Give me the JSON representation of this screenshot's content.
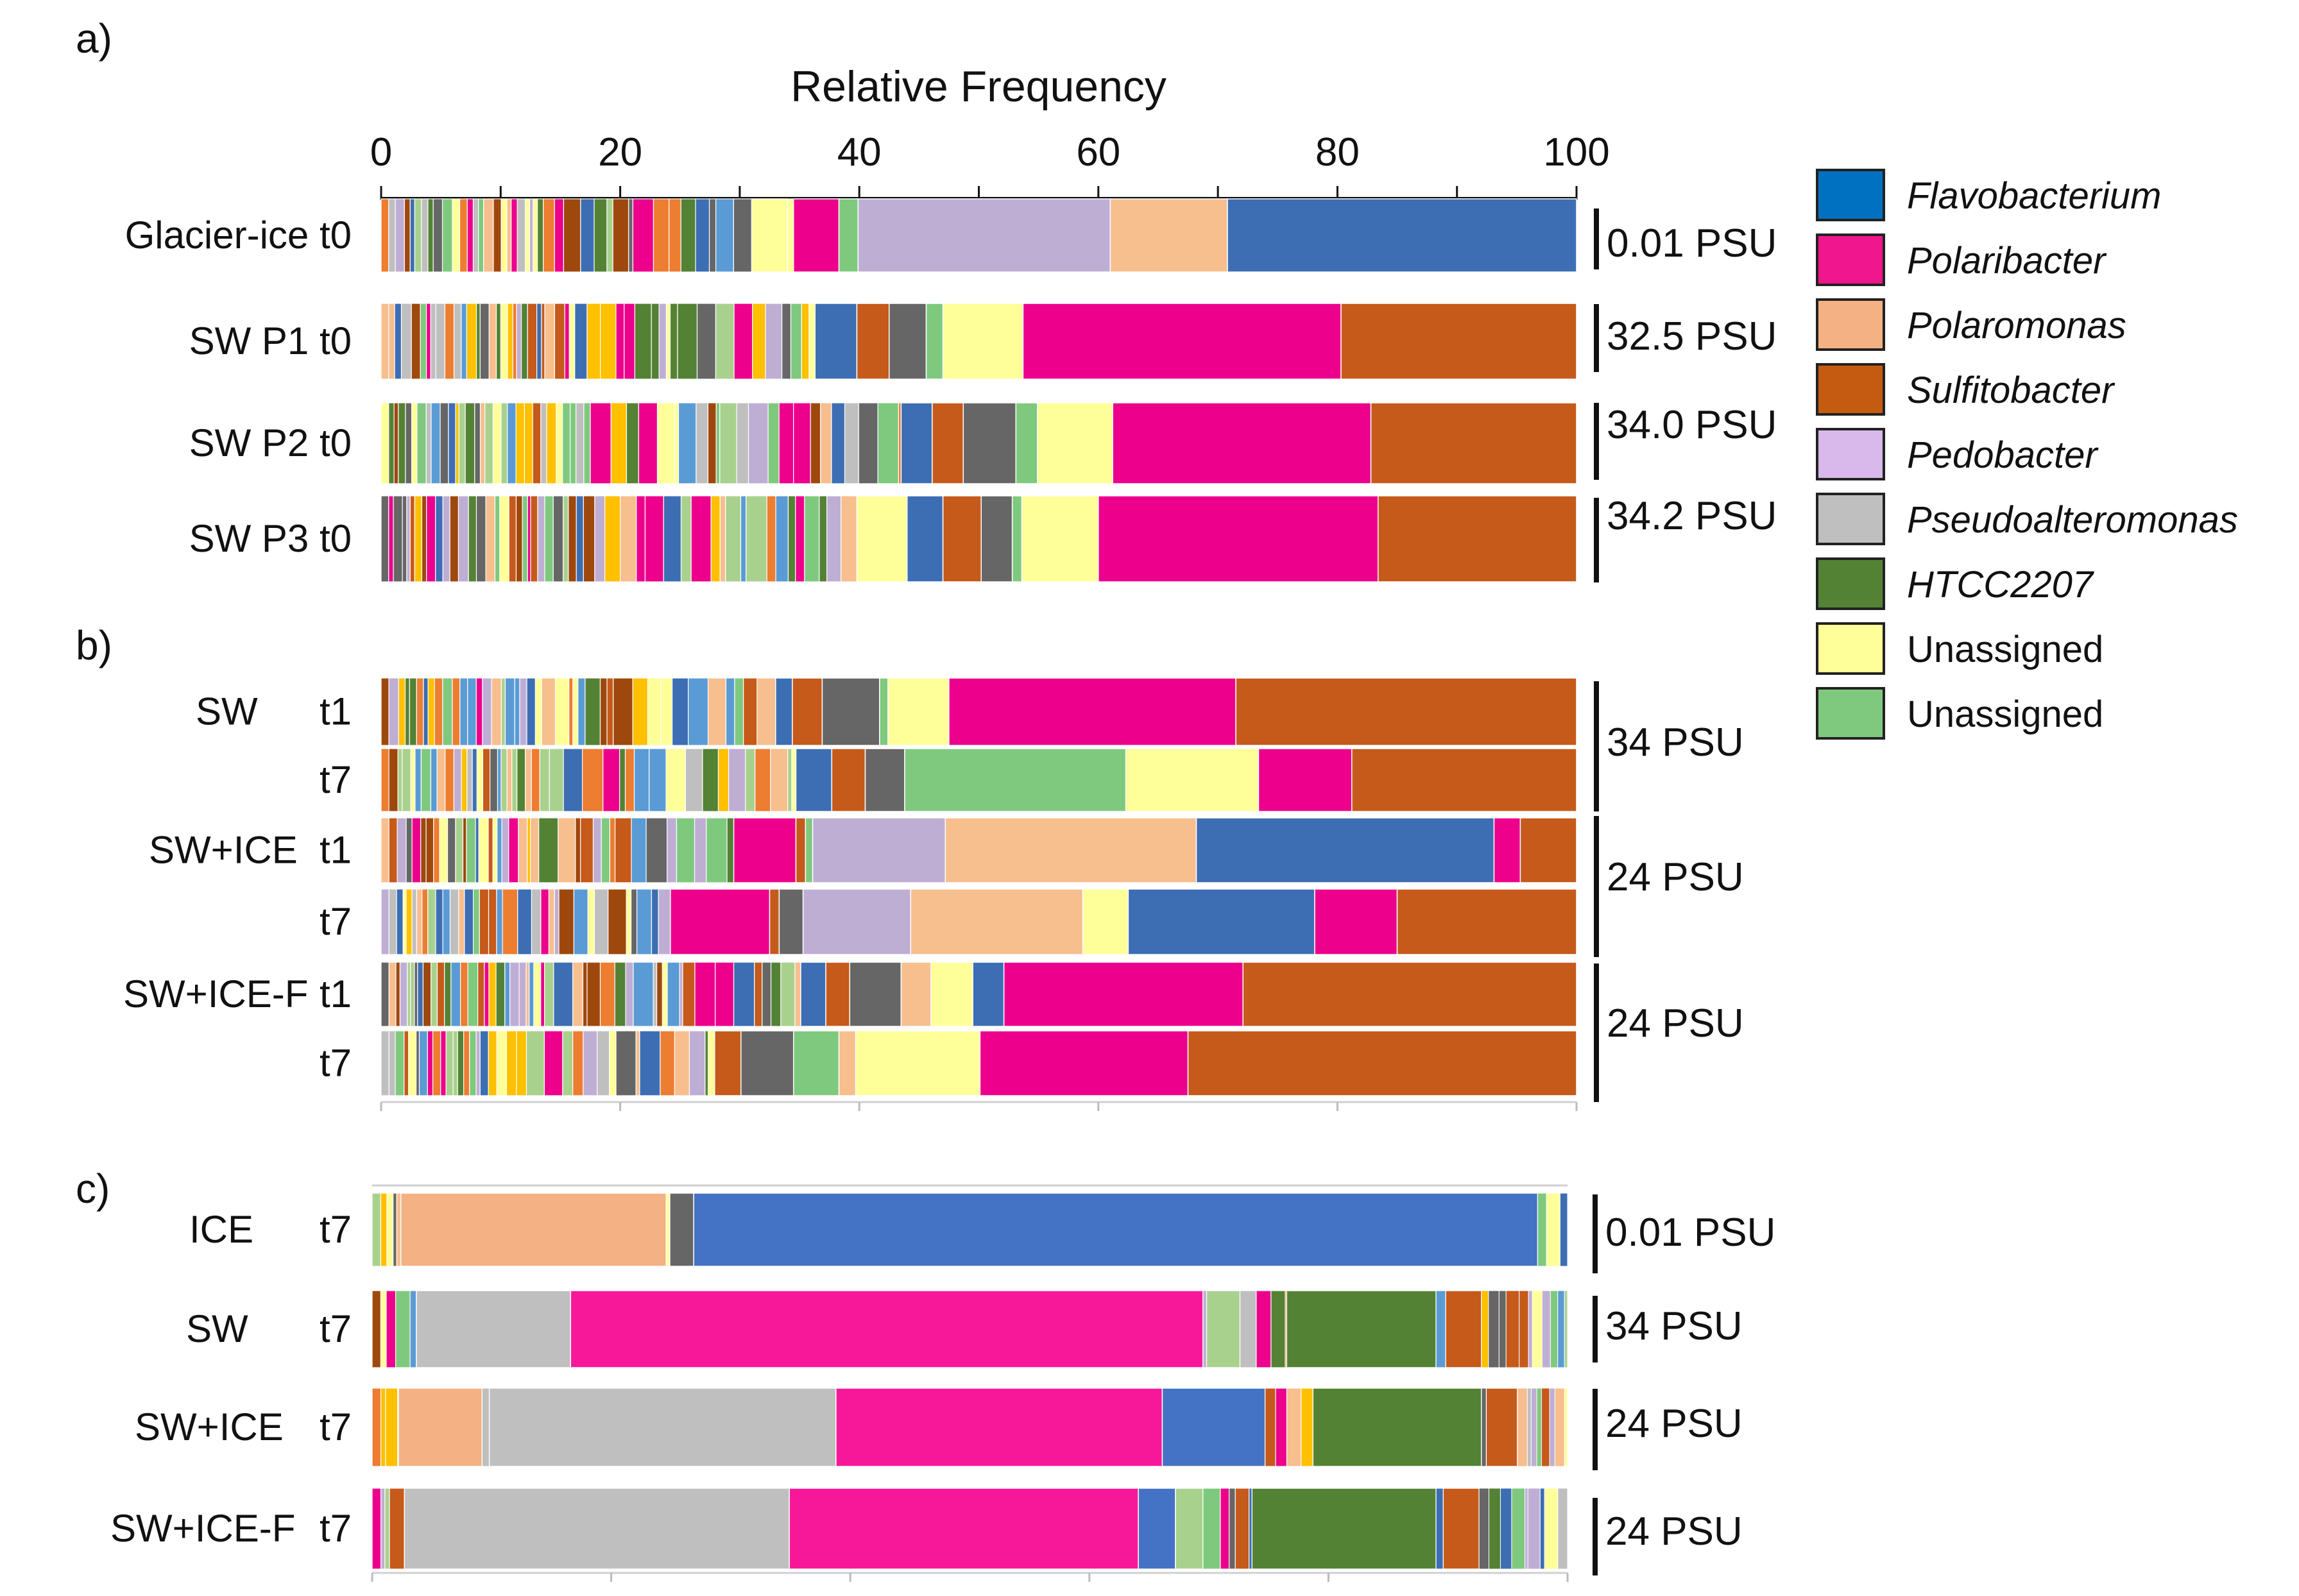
{
  "chart_data": {
    "type": "bar",
    "orientation": "horizontal",
    "stacked": true,
    "title": "Relative Frequency",
    "xlim": [
      0,
      100
    ],
    "x_ticks": [
      "0",
      "20",
      "40",
      "60",
      "80",
      "100"
    ],
    "panels": [
      {
        "label": "a)",
        "bars": [
          {
            "name": "Glacier-ice t0",
            "salinity": "0.01 PSU",
            "major": [
              {
                "taxon": "Unassigned",
                "start": 31.0,
                "value": 3.0
              },
              {
                "taxon": "Polaribacter",
                "start": 34.5,
                "value": 3.8
              },
              {
                "taxon": "Unassigned (green)",
                "start": 38.3,
                "value": 1.6
              },
              {
                "taxon": "Pedobacter",
                "start": 39.9,
                "value": 21.1
              },
              {
                "taxon": "Polaromonas",
                "start": 61.0,
                "value": 9.8
              },
              {
                "taxon": "Flavobacterium",
                "start": 70.8,
                "value": 29.2
              }
            ]
          },
          {
            "name": "SW P1 t0",
            "salinity": "32.5 PSU",
            "major": [
              {
                "taxon": "Flavobacterium",
                "start": 36.3,
                "value": 3.5
              },
              {
                "taxon": "Sulfitobacter",
                "start": 39.8,
                "value": 2.7
              },
              {
                "taxon": "other",
                "start": 42.5,
                "value": 3.1
              },
              {
                "taxon": "Unassigned (green)",
                "start": 45.6,
                "value": 1.4
              },
              {
                "taxon": "Unassigned",
                "start": 47.0,
                "value": 6.7
              },
              {
                "taxon": "Polaribacter",
                "start": 53.7,
                "value": 26.6
              },
              {
                "taxon": "Sulfitobacter",
                "start": 80.3,
                "value": 19.7
              }
            ]
          },
          {
            "name": "SW P2 t0",
            "salinity": "34.0 PSU",
            "major": [
              {
                "taxon": "Flavobacterium",
                "start": 43.5,
                "value": 2.6
              },
              {
                "taxon": "Sulfitobacter",
                "start": 46.1,
                "value": 2.6
              },
              {
                "taxon": "other",
                "start": 48.7,
                "value": 4.4
              },
              {
                "taxon": "Unassigned (green)",
                "start": 53.1,
                "value": 1.8
              },
              {
                "taxon": "Unassigned",
                "start": 54.9,
                "value": 6.3
              },
              {
                "taxon": "Polaribacter",
                "start": 61.2,
                "value": 21.6
              },
              {
                "taxon": "Sulfitobacter",
                "start": 82.8,
                "value": 17.2
              }
            ]
          },
          {
            "name": "SW P3 t0",
            "salinity": "34.2 PSU",
            "major": [
              {
                "taxon": "Unassigned",
                "start": 39.8,
                "value": 4.2
              },
              {
                "taxon": "Flavobacterium",
                "start": 44.0,
                "value": 3.0
              },
              {
                "taxon": "Sulfitobacter",
                "start": 47.0,
                "value": 3.2
              },
              {
                "taxon": "other",
                "start": 50.2,
                "value": 2.6
              },
              {
                "taxon": "Unassigned (green)",
                "start": 52.8,
                "value": 0.8
              },
              {
                "taxon": "Unassigned",
                "start": 53.6,
                "value": 6.4
              },
              {
                "taxon": "Polaribacter",
                "start": 60.0,
                "value": 23.4
              },
              {
                "taxon": "Sulfitobacter",
                "start": 83.4,
                "value": 16.6
              }
            ]
          }
        ]
      },
      {
        "label": "b)",
        "bars": [
          {
            "name": "SW",
            "time": "t1",
            "salinity": "34 PSU",
            "major": [
              {
                "taxon": "Flavobacterium",
                "start": 33.0,
                "value": 1.4
              },
              {
                "taxon": "Sulfitobacter",
                "start": 34.4,
                "value": 2.5
              },
              {
                "taxon": "other",
                "start": 36.9,
                "value": 4.8
              },
              {
                "taxon": "Unassigned (green)",
                "start": 41.7,
                "value": 0.7
              },
              {
                "taxon": "Unassigned",
                "start": 42.4,
                "value": 5.1
              },
              {
                "taxon": "Polaribacter",
                "start": 47.5,
                "value": 24.0
              },
              {
                "taxon": "Sulfitobacter",
                "start": 71.5,
                "value": 28.5
              }
            ]
          },
          {
            "name": "",
            "time": "t7",
            "major": [
              {
                "taxon": "Flavobacterium",
                "start": 34.7,
                "value": 3.0
              },
              {
                "taxon": "Sulfitobacter",
                "start": 37.7,
                "value": 2.8
              },
              {
                "taxon": "other",
                "start": 40.5,
                "value": 3.3
              },
              {
                "taxon": "Unassigned (green)",
                "start": 43.8,
                "value": 18.5
              },
              {
                "taxon": "Unassigned",
                "start": 62.3,
                "value": 11.1
              },
              {
                "taxon": "Polaribacter",
                "start": 73.4,
                "value": 7.8
              },
              {
                "taxon": "Sulfitobacter",
                "start": 81.2,
                "value": 18.8
              }
            ]
          },
          {
            "name": "SW+ICE",
            "time": "t1",
            "salinity": "24 PSU",
            "major": [
              {
                "taxon": "Polaribacter",
                "start": 29.5,
                "value": 5.2
              },
              {
                "taxon": "Sulfitobacter",
                "start": 34.7,
                "value": 0.8
              },
              {
                "taxon": "Unassigned (green)",
                "start": 35.5,
                "value": 0.6
              },
              {
                "taxon": "Pedobacter",
                "start": 36.1,
                "value": 11.1
              },
              {
                "taxon": "Polaromonas",
                "start": 47.2,
                "value": 21.0
              },
              {
                "taxon": "Flavobacterium",
                "start": 68.2,
                "value": 24.9
              },
              {
                "taxon": "Polaribacter",
                "start": 93.1,
                "value": 2.2
              },
              {
                "taxon": "Sulfitobacter",
                "start": 95.3,
                "value": 4.7
              }
            ]
          },
          {
            "name": "",
            "time": "t7",
            "major": [
              {
                "taxon": "Polaribacter",
                "start": 24.2,
                "value": 8.3
              },
              {
                "taxon": "Sulfitobacter",
                "start": 32.5,
                "value": 0.8
              },
              {
                "taxon": "other",
                "start": 33.3,
                "value": 2.0
              },
              {
                "taxon": "Pedobacter",
                "start": 35.3,
                "value": 9.0
              },
              {
                "taxon": "Polaromonas",
                "start": 44.3,
                "value": 14.4
              },
              {
                "taxon": "Unassigned",
                "start": 58.7,
                "value": 3.8
              },
              {
                "taxon": "Flavobacterium",
                "start": 62.5,
                "value": 15.6
              },
              {
                "taxon": "Polaribacter",
                "start": 78.1,
                "value": 6.9
              },
              {
                "taxon": "Sulfitobacter",
                "start": 85.0,
                "value": 15.0
              }
            ]
          },
          {
            "name": "SW+ICE-F",
            "time": "t1",
            "salinity": "24 PSU",
            "major": [
              {
                "taxon": "Flavobacterium",
                "start": 35.1,
                "value": 2.1
              },
              {
                "taxon": "Sulfitobacter",
                "start": 37.2,
                "value": 2.0
              },
              {
                "taxon": "other",
                "start": 39.2,
                "value": 4.3
              },
              {
                "taxon": "Polaromonas",
                "start": 43.5,
                "value": 2.5
              },
              {
                "taxon": "Unassigned",
                "start": 46.0,
                "value": 3.5
              },
              {
                "taxon": "Flavobacterium",
                "start": 49.5,
                "value": 2.6
              },
              {
                "taxon": "Polaribacter",
                "start": 52.1,
                "value": 20.0
              },
              {
                "taxon": "Sulfitobacter",
                "start": 72.1,
                "value": 27.9
              }
            ]
          },
          {
            "name": "",
            "time": "t7",
            "major": [
              {
                "taxon": "Sulfitobacter",
                "start": 27.9,
                "value": 2.2
              },
              {
                "taxon": "other",
                "start": 30.1,
                "value": 4.4
              },
              {
                "taxon": "Unassigned (green)",
                "start": 34.5,
                "value": 3.8
              },
              {
                "taxon": "Polaromonas",
                "start": 38.3,
                "value": 1.4
              },
              {
                "taxon": "Unassigned",
                "start": 39.7,
                "value": 10.4
              },
              {
                "taxon": "Polaribacter",
                "start": 50.1,
                "value": 17.4
              },
              {
                "taxon": "Sulfitobacter",
                "start": 67.5,
                "value": 32.5
              }
            ]
          }
        ]
      },
      {
        "label": "c)",
        "bars": [
          {
            "name": "ICE",
            "time": "t7",
            "salinity": "0.01 PSU",
            "major": [
              {
                "taxon": "Polaromonas",
                "start": 2.4,
                "value": 22.2
              },
              {
                "taxon": "Unassigned",
                "start": 24.6,
                "value": 0.3
              },
              {
                "taxon": "other",
                "start": 24.9,
                "value": 2.0
              },
              {
                "taxon": "Flavobacterium",
                "start": 26.9,
                "value": 70.6
              }
            ]
          },
          {
            "name": "SW",
            "time": "t7",
            "salinity": "34 PSU",
            "major": [
              {
                "taxon": "Pseudoalteromonas",
                "start": 3.7,
                "value": 12.9
              },
              {
                "taxon": "Polaribacter",
                "start": 16.6,
                "value": 52.9
              },
              {
                "taxon": "Unassigned (light green)",
                "start": 69.8,
                "value": 2.8
              },
              {
                "taxon": "HTCC2207",
                "start": 76.5,
                "value": 12.5
              },
              {
                "taxon": "Sulfitobacter",
                "start": 89.8,
                "value": 3.0
              }
            ]
          },
          {
            "name": "SW+ICE",
            "time": "t7",
            "salinity": "24 PSU",
            "major": [
              {
                "taxon": "Polaromonas",
                "start": 2.2,
                "value": 7.0
              },
              {
                "taxon": "Pseudoalteromonas",
                "start": 9.8,
                "value": 29.0
              },
              {
                "taxon": "Polaribacter",
                "start": 38.8,
                "value": 27.3
              },
              {
                "taxon": "Flavobacterium",
                "start": 66.1,
                "value": 8.6
              },
              {
                "taxon": "HTCC2207",
                "start": 78.7,
                "value": 14.1
              },
              {
                "taxon": "Sulfitobacter",
                "start": 93.2,
                "value": 2.6
              }
            ]
          },
          {
            "name": "SW+ICE-F",
            "time": "t7",
            "salinity": "24 PSU",
            "major": [
              {
                "taxon": "Pseudoalteromonas",
                "start": 2.7,
                "value": 32.2
              },
              {
                "taxon": "Polaribacter",
                "start": 34.9,
                "value": 29.2
              },
              {
                "taxon": "Flavobacterium",
                "start": 64.1,
                "value": 3.1
              },
              {
                "taxon": "Unassigned (light green)",
                "start": 67.2,
                "value": 2.3
              },
              {
                "taxon": "HTCC2207",
                "start": 73.6,
                "value": 15.4
              },
              {
                "taxon": "Sulfitobacter",
                "start": 89.6,
                "value": 3.0
              }
            ]
          }
        ]
      }
    ],
    "legend": [
      {
        "label": "Flavobacterium",
        "italic": true,
        "color": "#0070C0"
      },
      {
        "label": "Polaribacter",
        "italic": true,
        "color": "#F0168D"
      },
      {
        "label": "Polaromonas",
        "italic": true,
        "color": "#F4B183"
      },
      {
        "label": "Sulfitobacter",
        "italic": true,
        "color": "#C55A11"
      },
      {
        "label": "Pedobacter",
        "italic": true,
        "color": "#D9B8EC"
      },
      {
        "label": "Pseudoalteromonas",
        "italic": true,
        "color": "#BFBFBF"
      },
      {
        "label": "HTCC2207",
        "italic": true,
        "color": "#548235"
      },
      {
        "label": "Unassigned",
        "italic": false,
        "color": "#FFFF99"
      },
      {
        "label": "Unassigned",
        "italic": false,
        "color": "#7FC97F"
      }
    ],
    "legend_position": "right"
  },
  "colors": {
    "Flavobacterium": "#3D6EB4",
    "Flavobacterium (c)": "#4472C4",
    "Polaribacter": "#EC008C",
    "Polaribacter (c)": "#F7189A",
    "Polaromonas": "#F7BE8E",
    "Polaromonas (c)": "#F4B183",
    "Sulfitobacter": "#C55A1B",
    "Pedobacter": "#BFAED4",
    "Pseudoalteromonas": "#BFBFBF",
    "HTCC2207": "#548235",
    "Unassigned": "#FFFF99",
    "Unassigned (green)": "#7FC97F",
    "Unassigned (light green)": "#A9D18E",
    "other": "#666666"
  }
}
